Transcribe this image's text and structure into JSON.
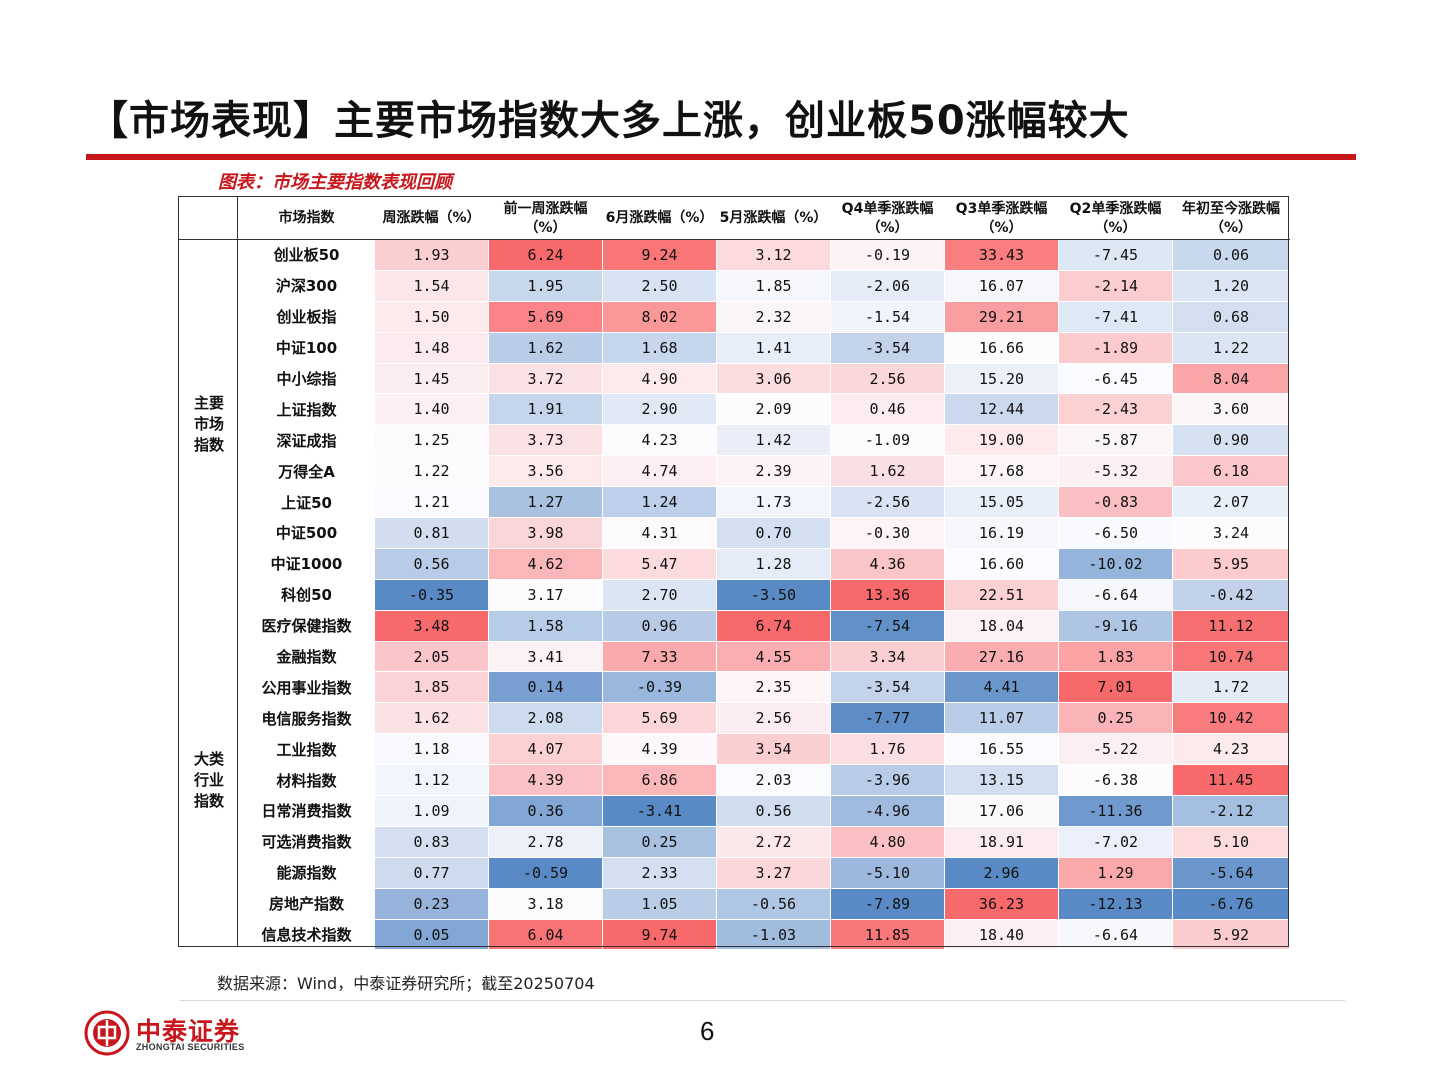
{
  "title": "【市场表现】主要市场指数大多上涨，创业板50涨幅较大",
  "caption": "图表：市场主要指数表现回顾",
  "table": {
    "headers": [
      "市场指数",
      "周涨跌幅（%）",
      "前一周涨跌幅（%）",
      "6月涨跌幅（%）",
      "5月涨跌幅（%）",
      "Q4单季涨跌幅（%）",
      "Q3单季涨跌幅（%）",
      "Q2单季涨跌幅（%）",
      "年初至今涨跌幅（%）"
    ],
    "groups": [
      {
        "label": "主要市场指数",
        "rows": [
          {
            "name": "创业板50",
            "values": [
              "1.93",
              "6.24",
              "9.24",
              "3.12",
              "-0.19",
              "33.43",
              "-7.45",
              "0.06"
            ]
          },
          {
            "name": "沪深300",
            "values": [
              "1.54",
              "1.95",
              "2.50",
              "1.85",
              "-2.06",
              "16.07",
              "-2.14",
              "1.20"
            ]
          },
          {
            "name": "创业板指",
            "values": [
              "1.50",
              "5.69",
              "8.02",
              "2.32",
              "-1.54",
              "29.21",
              "-7.41",
              "0.68"
            ]
          },
          {
            "name": "中证100",
            "values": [
              "1.48",
              "1.62",
              "1.68",
              "1.41",
              "-3.54",
              "16.66",
              "-1.89",
              "1.22"
            ]
          },
          {
            "name": "中小综指",
            "values": [
              "1.45",
              "3.72",
              "4.90",
              "3.06",
              "2.56",
              "15.20",
              "-6.45",
              "8.04"
            ]
          },
          {
            "name": "上证指数",
            "values": [
              "1.40",
              "1.91",
              "2.90",
              "2.09",
              "0.46",
              "12.44",
              "-2.43",
              "3.60"
            ]
          },
          {
            "name": "深证成指",
            "values": [
              "1.25",
              "3.73",
              "4.23",
              "1.42",
              "-1.09",
              "19.00",
              "-5.87",
              "0.90"
            ]
          },
          {
            "name": "万得全A",
            "values": [
              "1.22",
              "3.56",
              "4.74",
              "2.39",
              "1.62",
              "17.68",
              "-5.32",
              "6.18"
            ]
          },
          {
            "name": "上证50",
            "values": [
              "1.21",
              "1.27",
              "1.24",
              "1.73",
              "-2.56",
              "15.05",
              "-0.83",
              "2.07"
            ]
          },
          {
            "name": "中证500",
            "values": [
              "0.81",
              "3.98",
              "4.31",
              "0.70",
              "-0.30",
              "16.19",
              "-6.50",
              "3.24"
            ]
          },
          {
            "name": "中证1000",
            "values": [
              "0.56",
              "4.62",
              "5.47",
              "1.28",
              "4.36",
              "16.60",
              "-10.02",
              "5.95"
            ]
          },
          {
            "name": "科创50",
            "values": [
              "-0.35",
              "3.17",
              "2.70",
              "-3.50",
              "13.36",
              "22.51",
              "-6.64",
              "-0.42"
            ]
          }
        ]
      },
      {
        "label": "大类行业指数",
        "rows": [
          {
            "name": "医疗保健指数",
            "values": [
              "3.48",
              "1.58",
              "0.96",
              "6.74",
              "-7.54",
              "18.04",
              "-9.16",
              "11.12"
            ]
          },
          {
            "name": "金融指数",
            "values": [
              "2.05",
              "3.41",
              "7.33",
              "4.55",
              "3.34",
              "27.16",
              "1.83",
              "10.74"
            ]
          },
          {
            "name": "公用事业指数",
            "values": [
              "1.85",
              "0.14",
              "-0.39",
              "2.35",
              "-3.54",
              "4.41",
              "7.01",
              "1.72"
            ]
          },
          {
            "name": "电信服务指数",
            "values": [
              "1.62",
              "2.08",
              "5.69",
              "2.56",
              "-7.77",
              "11.07",
              "0.25",
              "10.42"
            ]
          },
          {
            "name": "工业指数",
            "values": [
              "1.18",
              "4.07",
              "4.39",
              "3.54",
              "1.76",
              "16.55",
              "-5.22",
              "4.23"
            ]
          },
          {
            "name": "材料指数",
            "values": [
              "1.12",
              "4.39",
              "6.86",
              "2.03",
              "-3.96",
              "13.15",
              "-6.38",
              "11.45"
            ]
          },
          {
            "name": "日常消费指数",
            "values": [
              "1.09",
              "0.36",
              "-3.41",
              "0.56",
              "-4.96",
              "17.06",
              "-11.36",
              "-2.12"
            ]
          },
          {
            "name": "可选消费指数",
            "values": [
              "0.83",
              "2.78",
              "0.25",
              "2.72",
              "4.80",
              "18.91",
              "-7.02",
              "5.10"
            ]
          },
          {
            "name": "能源指数",
            "values": [
              "0.77",
              "-0.59",
              "2.33",
              "3.27",
              "-5.10",
              "2.96",
              "1.29",
              "-5.64"
            ]
          },
          {
            "name": "房地产指数",
            "values": [
              "0.23",
              "3.18",
              "1.05",
              "-0.56",
              "-7.89",
              "36.23",
              "-12.13",
              "-6.76"
            ]
          },
          {
            "name": "信息技术指数",
            "values": [
              "0.05",
              "6.04",
              "9.74",
              "-1.03",
              "11.85",
              "18.40",
              "-6.64",
              "5.92"
            ]
          }
        ]
      }
    ]
  },
  "colors": {
    "brand_red": "#c8161d",
    "heat_high": "#f8696b",
    "heat_mid": "#fcfcff",
    "heat_low": "#5a8ac6"
  },
  "source": "数据来源：Wind，中泰证券研究所；截至20250704",
  "logo": {
    "cn": "中泰证券",
    "en": "ZHONGTAI SECURITIES"
  },
  "page_number": "6"
}
